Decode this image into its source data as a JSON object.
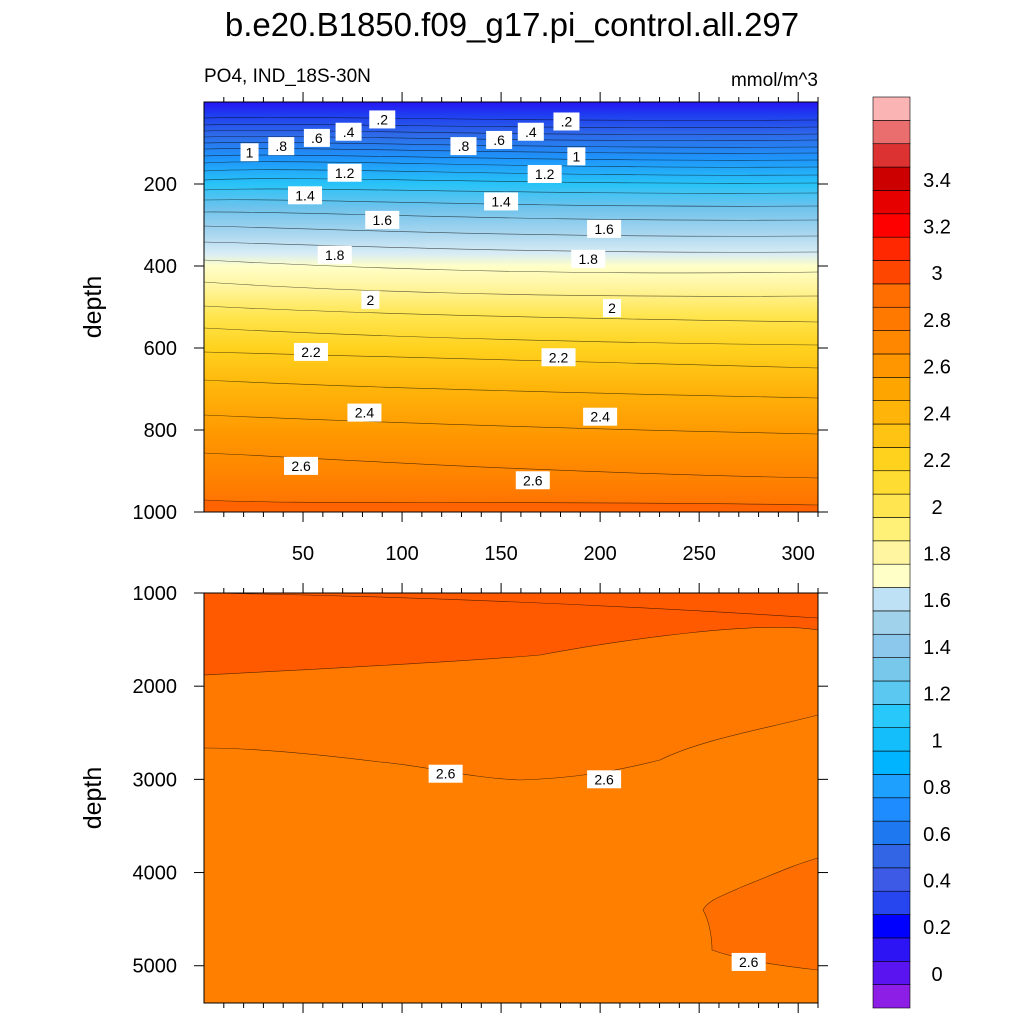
{
  "title": "b.e20.B1850.f09_g17.pi_control.all.297",
  "chart_data": {
    "type": "heatmap",
    "variable": "PO4, IND_18S-30N",
    "units": "mmol/m^3",
    "colorbar": {
      "levels": [
        0,
        0.1,
        0.2,
        0.3,
        0.4,
        0.5,
        0.6,
        0.7,
        0.8,
        0.9,
        1.0,
        1.1,
        1.2,
        1.3,
        1.4,
        1.5,
        1.6,
        1.7,
        1.8,
        1.9,
        2.0,
        2.1,
        2.2,
        2.3,
        2.4,
        2.5,
        2.6,
        2.7,
        2.8,
        2.9,
        3.0,
        3.1,
        3.2,
        3.3,
        3.4,
        3.5,
        3.6
      ],
      "tick_labels": [
        "0",
        "0.2",
        "0.4",
        "0.6",
        "0.8",
        "1",
        "1.2",
        "1.4",
        "1.6",
        "1.8",
        "2",
        "2.2",
        "2.4",
        "2.6",
        "2.8",
        "3",
        "3.2",
        "3.4"
      ],
      "tick_values": [
        0,
        0.2,
        0.4,
        0.6,
        0.8,
        1.0,
        1.2,
        1.4,
        1.6,
        1.8,
        2.0,
        2.2,
        2.4,
        2.6,
        2.8,
        3.0,
        3.2,
        3.4
      ],
      "colors": [
        "#8c1ee6",
        "#5a14f0",
        "#2d14f5",
        "#0000ff",
        "#2846f0",
        "#3c5ae6",
        "#3264e6",
        "#1e78f0",
        "#1e8cff",
        "#1ea0ff",
        "#00b4ff",
        "#14befa",
        "#28c8fa",
        "#5ac8f0",
        "#78c8eb",
        "#8cc8eb",
        "#a0d2eb",
        "#bee1f5",
        "#ffffc8",
        "#fff5a0",
        "#fff078",
        "#ffe650",
        "#ffdc32",
        "#ffd21e",
        "#ffc314",
        "#ffb40a",
        "#ffa500",
        "#ff9600",
        "#ff8700",
        "#ff7800",
        "#ff6e00",
        "#ff4600",
        "#ff2800",
        "#ff0000",
        "#e60000",
        "#cd0000",
        "#dc3232",
        "#eb6e6e",
        "#fab4b4"
      ]
    },
    "top_panel": {
      "xlim": [
        0,
        310
      ],
      "ylim": [
        1000,
        0
      ],
      "xticks": [
        50,
        100,
        150,
        200,
        250,
        300
      ],
      "xtick_labels": [
        "50",
        "100",
        "150",
        "200",
        "250",
        "300"
      ],
      "yticks": [
        200,
        400,
        600,
        800,
        1000
      ],
      "ytick_labels": [
        "200",
        "400",
        "600",
        "800",
        "1000"
      ],
      "ylabel": "depth",
      "contour_labels": [
        {
          "text": ".2",
          "x": 90,
          "y": 45
        },
        {
          "text": ".2",
          "x": 183,
          "y": 50
        },
        {
          "text": ".4",
          "x": 73,
          "y": 75
        },
        {
          "text": ".4",
          "x": 165,
          "y": 75
        },
        {
          "text": ".6",
          "x": 57,
          "y": 90
        },
        {
          "text": ".6",
          "x": 149,
          "y": 95
        },
        {
          "text": ".8",
          "x": 39,
          "y": 110
        },
        {
          "text": ".8",
          "x": 131,
          "y": 110
        },
        {
          "text": "1",
          "x": 23,
          "y": 125
        },
        {
          "text": "1",
          "x": 188,
          "y": 135
        },
        {
          "text": "1.2",
          "x": 71,
          "y": 175
        },
        {
          "text": "1.2",
          "x": 172,
          "y": 178
        },
        {
          "text": "1.4",
          "x": 51,
          "y": 230
        },
        {
          "text": "1.4",
          "x": 150,
          "y": 245
        },
        {
          "text": "1.6",
          "x": 90,
          "y": 290
        },
        {
          "text": "1.6",
          "x": 202,
          "y": 312
        },
        {
          "text": "1.8",
          "x": 66,
          "y": 375
        },
        {
          "text": "1.8",
          "x": 194,
          "y": 385
        },
        {
          "text": "2",
          "x": 84,
          "y": 485
        },
        {
          "text": "2",
          "x": 206,
          "y": 505
        },
        {
          "text": "2.2",
          "x": 54,
          "y": 612
        },
        {
          "text": "2.2",
          "x": 179,
          "y": 625
        },
        {
          "text": "2.4",
          "x": 81,
          "y": 760
        },
        {
          "text": "2.4",
          "x": 200,
          "y": 770
        },
        {
          "text": "2.6",
          "x": 49,
          "y": 890
        },
        {
          "text": "2.6",
          "x": 166,
          "y": 925
        }
      ]
    },
    "bottom_panel": {
      "xlim": [
        0,
        310
      ],
      "ylim": [
        5400,
        1000
      ],
      "yticks": [
        1000,
        2000,
        3000,
        4000,
        5000
      ],
      "ytick_labels": [
        "1000",
        "2000",
        "3000",
        "4000",
        "5000"
      ],
      "ylabel": "depth",
      "contour_labels": [
        {
          "text": "2.6",
          "x": 122,
          "y": 2950
        },
        {
          "text": "2.6",
          "x": 202,
          "y": 3010
        },
        {
          "text": "2.6",
          "x": 275,
          "y": 4970
        }
      ]
    }
  }
}
